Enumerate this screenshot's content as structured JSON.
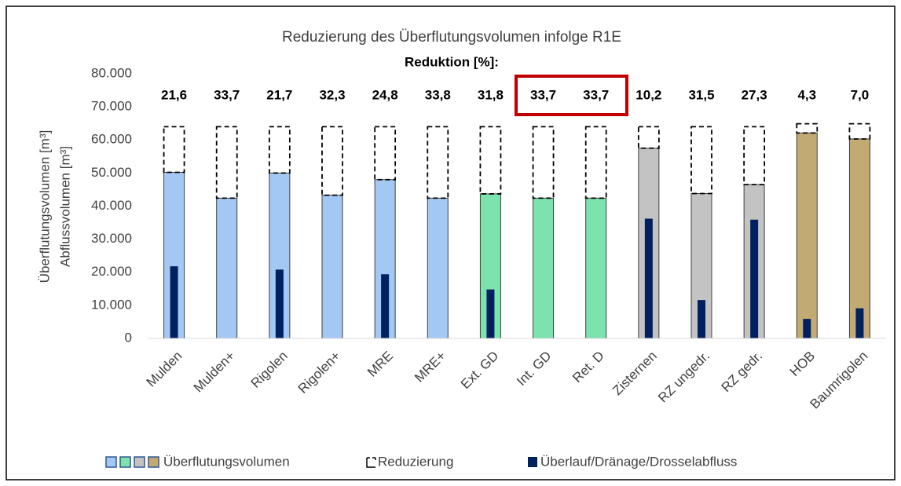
{
  "chart_data": {
    "type": "bar",
    "title": "Reduzierung des Überflutungsvolumen infolge R1E",
    "y_label_lines": [
      "Überflutungsvolumen [m³]",
      "Abflussvolumen [m³]"
    ],
    "categories": [
      "Mulden",
      "Mulden+",
      "Rigolen",
      "Rigolen+",
      "MRE",
      "MRE+",
      "Ext. GD",
      "Int. GD",
      "Ret. D",
      "Zisternen",
      "RZ ungedr.",
      "RZ gedr.",
      "HOB",
      "Baumrigolen"
    ],
    "series": [
      {
        "name": "Überflutungsvolumen",
        "colors": [
          "#a4c8f4",
          "#a4c8f4",
          "#a4c8f4",
          "#a4c8f4",
          "#a4c8f4",
          "#a4c8f4",
          "#7de3ae",
          "#7de3ae",
          "#7de3ae",
          "#c3c3c3",
          "#c3c3c3",
          "#c3c3c3",
          "#c1ab73",
          "#c1ab73"
        ],
        "values": [
          50200,
          42400,
          50000,
          43300,
          48000,
          42400,
          43700,
          42400,
          42400,
          57500,
          43800,
          46500,
          62100,
          60300
        ]
      },
      {
        "name": "Reduzierung",
        "color": "#000000",
        "values": [
          13800,
          21600,
          14000,
          20700,
          16000,
          21600,
          20300,
          21600,
          21600,
          6500,
          20200,
          17500,
          2800,
          4600
        ]
      },
      {
        "name": "Überlauf/Dränage/Drosselabfluss",
        "color": "#002060",
        "values": [
          21800,
          null,
          20800,
          null,
          19400,
          null,
          14800,
          null,
          null,
          36200,
          11600,
          35900,
          5900,
          9100
        ]
      }
    ],
    "reduction": {
      "title": "Reduktion [%]:",
      "values": [
        21.6,
        33.7,
        21.7,
        32.3,
        24.8,
        33.8,
        31.8,
        33.7,
        33.7,
        10.2,
        31.5,
        27.3,
        4.3,
        7.0
      ],
      "value_labels": [
        "21,6",
        "33,7",
        "21,7",
        "32,3",
        "24,8",
        "33,8",
        "31,8",
        "33,7",
        "33,7",
        "10,2",
        "31,5",
        "27,3",
        "4,3",
        "7,0"
      ]
    },
    "ylim": [
      0,
      80000
    ],
    "yticks": [
      0,
      {
        "value": 10000,
        "label": "10.000"
      },
      {
        "value": 20000,
        "label": "20.000"
      },
      {
        "value": 30000,
        "label": "30.000"
      },
      {
        "value": 40000,
        "label": "40.000"
      },
      {
        "value": 50000,
        "label": "50.000"
      },
      {
        "value": 60000,
        "label": "60.000"
      },
      {
        "value": 70000,
        "label": "70.000"
      },
      {
        "value": 80000,
        "label": "80.000"
      }
    ],
    "grid": false
  }
}
